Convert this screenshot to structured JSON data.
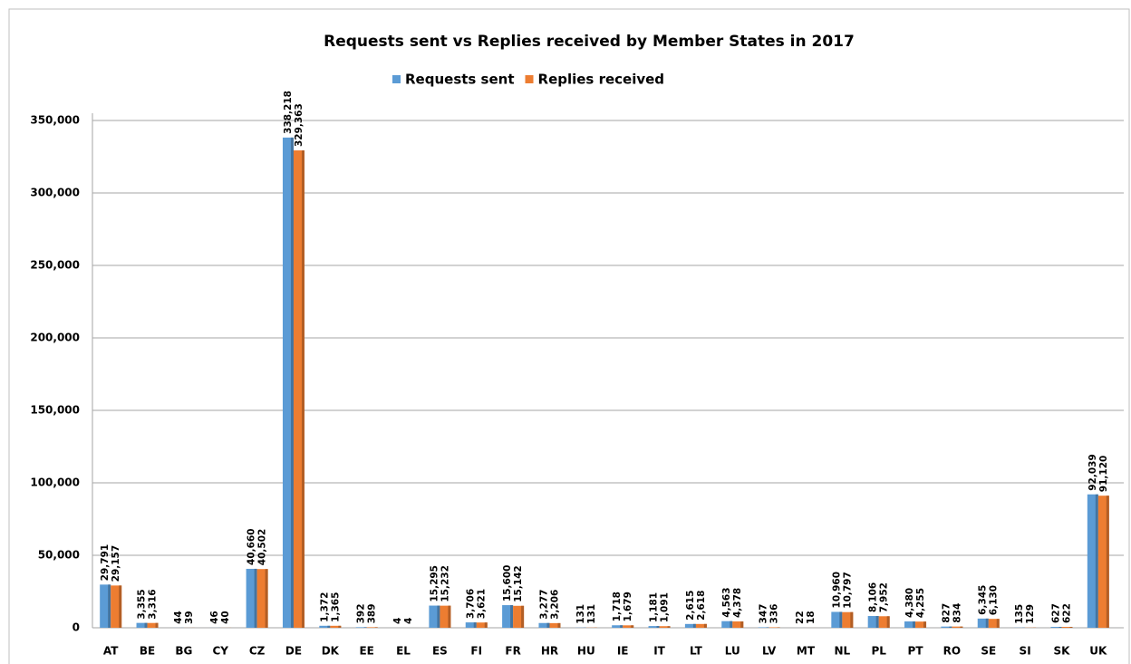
{
  "chart_data": {
    "type": "bar",
    "title": "Requests sent vs Replies received by Member States in 2017",
    "categories": [
      "AT",
      "BE",
      "BG",
      "CY",
      "CZ",
      "DE",
      "DK",
      "EE",
      "EL",
      "ES",
      "FI",
      "FR",
      "HR",
      "HU",
      "IE",
      "IT",
      "LT",
      "LU",
      "LV",
      "MT",
      "NL",
      "PL",
      "PT",
      "RO",
      "SE",
      "SI",
      "SK",
      "UK"
    ],
    "series": [
      {
        "name": "Requests sent",
        "color": "#5b9bd5",
        "values": [
          29791,
          3355,
          44,
          46,
          40660,
          338218,
          1372,
          392,
          4,
          15295,
          3706,
          15600,
          3277,
          131,
          1718,
          1181,
          2615,
          4563,
          347,
          22,
          10960,
          8106,
          4380,
          827,
          6345,
          135,
          627,
          92039
        ],
        "value_labels": [
          "29,791",
          "3,355",
          "44",
          "46",
          "40,660",
          "338,218",
          "1,372",
          "392",
          "4",
          "15,295",
          "3,706",
          "15,600",
          "3,277",
          "131",
          "1,718",
          "1,181",
          "2,615",
          "4,563",
          "347",
          "22",
          "10,960",
          "8,106",
          "4,380",
          "827",
          "6,345",
          "135",
          "627",
          "92,039"
        ]
      },
      {
        "name": "Replies received",
        "color": "#ed7d31",
        "values": [
          29157,
          3316,
          39,
          40,
          40502,
          329363,
          1365,
          389,
          4,
          15232,
          3621,
          15142,
          3206,
          131,
          1679,
          1091,
          2618,
          4378,
          336,
          18,
          10797,
          7952,
          4255,
          834,
          6130,
          129,
          622,
          91120
        ],
        "value_labels": [
          "29,157",
          "3,316",
          "39",
          "40",
          "40,502",
          "329,363",
          "1,365",
          "389",
          "4",
          "15,232",
          "3,621",
          "15,142",
          "3,206",
          "131",
          "1,679",
          "1,091",
          "2,618",
          "4,378",
          "336",
          "18",
          "10,797",
          "7,952",
          "4,255",
          "834",
          "6,130",
          "129",
          "622",
          "91,120"
        ]
      }
    ],
    "ylim": [
      0,
      350000
    ],
    "yticks": [
      0,
      {
        "value": 50000,
        "label": "50,000"
      },
      {
        "value": 100000,
        "label": "100,000"
      },
      {
        "value": 150000,
        "label": "150,000"
      },
      {
        "value": 200000,
        "label": "200,000"
      },
      {
        "value": 250000,
        "label": "250,000"
      },
      {
        "value": 300000,
        "label": "300,000"
      },
      {
        "value": 350000,
        "label": "350,000"
      }
    ],
    "grid": true
  }
}
